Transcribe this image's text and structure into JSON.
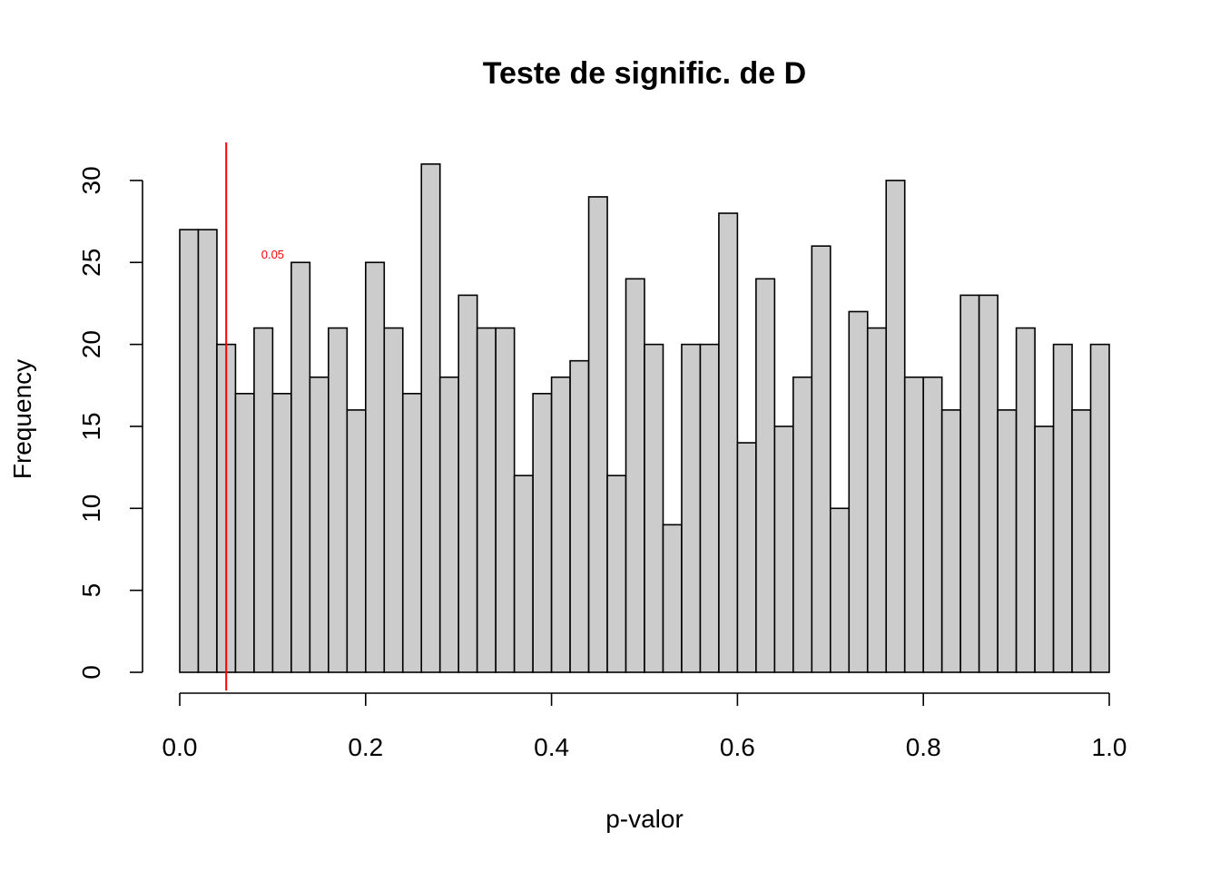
{
  "chart_data": {
    "type": "bar",
    "title": "Teste de signific. de D",
    "xlabel": "p-valor",
    "ylabel": "Frequency",
    "bin_width": 0.02,
    "x_start": 0.0,
    "values": [
      27,
      27,
      20,
      17,
      21,
      17,
      25,
      18,
      21,
      16,
      25,
      21,
      17,
      31,
      18,
      23,
      21,
      21,
      12,
      17,
      18,
      19,
      29,
      12,
      24,
      20,
      9,
      20,
      20,
      28,
      14,
      24,
      15,
      18,
      26,
      10,
      22,
      21,
      30,
      18,
      18,
      16,
      23,
      23,
      16,
      21,
      15,
      20,
      16,
      20
    ],
    "xlim": [
      0,
      1
    ],
    "ylim": [
      0,
      31
    ],
    "x_ticks": [
      0.0,
      0.2,
      0.4,
      0.6,
      0.8,
      1.0
    ],
    "x_tick_labels": [
      "0.0",
      "0.2",
      "0.4",
      "0.6",
      "0.8",
      "1.0"
    ],
    "y_ticks": [
      0,
      5,
      10,
      15,
      20,
      25,
      30
    ],
    "y_tick_labels": [
      "0",
      "5",
      "10",
      "15",
      "20",
      "25",
      "30"
    ],
    "bar_color": "#cccccc",
    "bar_border_color": "#000000",
    "grid": false,
    "legend": "none",
    "vline": {
      "x": 0.05,
      "color": "#ff0000"
    },
    "annotation": {
      "text": "0.05",
      "x": 0.1,
      "y": 25.5,
      "color": "#ff0000"
    }
  }
}
